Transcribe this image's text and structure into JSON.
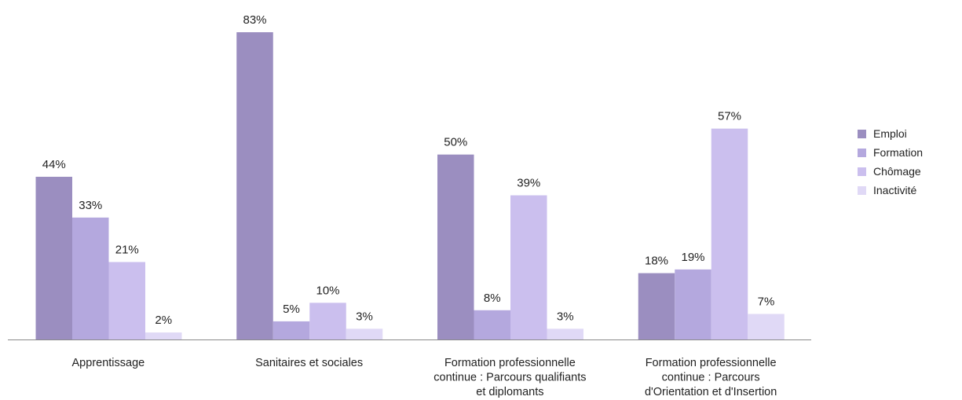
{
  "chart_data": {
    "type": "bar",
    "title": "",
    "xlabel": "",
    "ylabel": "",
    "ylim": [
      0,
      90
    ],
    "grid": false,
    "legend_position": "right",
    "categories": [
      [
        "Apprentissage"
      ],
      [
        "Sanitaires et sociales"
      ],
      [
        "Formation professionnelle",
        "continue : Parcours qualifiants",
        "et diplomants"
      ],
      [
        "Formation professionnelle",
        "continue : Parcours",
        "d'Orientation et d'Insertion"
      ]
    ],
    "series": [
      {
        "name": "Emploi",
        "color": "#9b8ec0",
        "values": [
          44,
          83,
          50,
          18
        ]
      },
      {
        "name": "Formation",
        "color": "#b4a8de",
        "values": [
          33,
          5,
          8,
          19
        ]
      },
      {
        "name": "Chômage",
        "color": "#cbbfee",
        "values": [
          21,
          10,
          39,
          57
        ]
      },
      {
        "name": "Inactivité",
        "color": "#e0d9f6",
        "values": [
          2,
          3,
          3,
          7
        ]
      }
    ],
    "value_suffix": "%"
  }
}
